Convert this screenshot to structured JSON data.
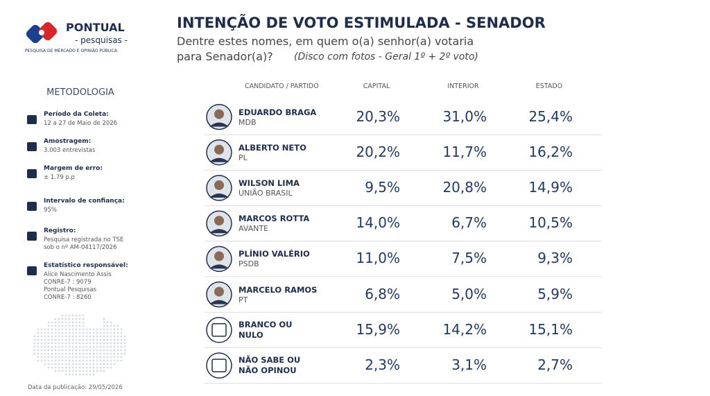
{
  "logo": {
    "name": "PONTUAL",
    "sub": "- pesquisas -",
    "tagline": "PESQUISA DE MERCADO E OPINIÃO PÚBLICA"
  },
  "header": {
    "title": "INTENÇÃO DE VOTO ESTIMULADA - SENADOR",
    "question_line1": "Dentre estes nomes, em quem o(a) senhor(a) votaria",
    "question_line2": "para Senador(a)?",
    "note": "(Disco com fotos - Geral 1º + 2º voto)"
  },
  "methodology": {
    "title": "METODOLOGIA",
    "items": [
      {
        "label": "Período da Coleta:",
        "lines": [
          "12 a 27 de Maio de 2026"
        ]
      },
      {
        "label": "Amostragem:",
        "lines": [
          "3.003 entrevistas"
        ]
      },
      {
        "label": "Margem de erro:",
        "lines": [
          "± 1.79 p.p"
        ]
      },
      {
        "label": "Intervalo de confiança:",
        "lines": [
          "95%"
        ]
      },
      {
        "label": "Registro:",
        "lines": [
          "Pesquisa registrada no TSE",
          "sob o nº AM-04117/2026"
        ]
      },
      {
        "label": "Estatístico responsável:",
        "lines": [
          "Alice Nascimento Assis",
          "CONRE-7 : 9079",
          "Pontual Pesquisas",
          "CONRE-7 : 8260"
        ]
      }
    ],
    "publication": "Data da publicação: 29/05/2026"
  },
  "table": {
    "columns": [
      "CANDIDATO / PARTIDO",
      "CAPITAL",
      "INTERIOR",
      "ESTADO"
    ],
    "rows": [
      {
        "name": "EDUARDO BRAGA",
        "party": "MDB",
        "values": [
          "20,3%",
          "31,0%",
          "25,4%"
        ]
      },
      {
        "name": "ALBERTO NETO",
        "party": "PL",
        "values": [
          "20,2%",
          "11,7%",
          "16,2%"
        ]
      },
      {
        "name": "WILSON LIMA",
        "party": "UNIÃO BRASIL",
        "values": [
          "9,5%",
          "20,8%",
          "14,9%"
        ]
      },
      {
        "name": "MARCOS ROTTA",
        "party": "AVANTE",
        "values": [
          "14,0%",
          "6,7%",
          "10,5%"
        ]
      },
      {
        "name": "PLÍNIO VALÉRIO",
        "party": "PSDB",
        "values": [
          "11,0%",
          "7,5%",
          "9,3%"
        ]
      },
      {
        "name": "MARCELO RAMOS",
        "party": "PT",
        "values": [
          "6,8%",
          "5,0%",
          "5,9%"
        ]
      },
      {
        "name": "BRANCO OU NULO",
        "values": [
          "15,9%",
          "14,2%",
          "15,1%"
        ]
      },
      {
        "name": "NÃO SABE OU NÃO OPINOU",
        "values": [
          "2,3%",
          "3,1%",
          "2,7%"
        ]
      }
    ]
  }
}
